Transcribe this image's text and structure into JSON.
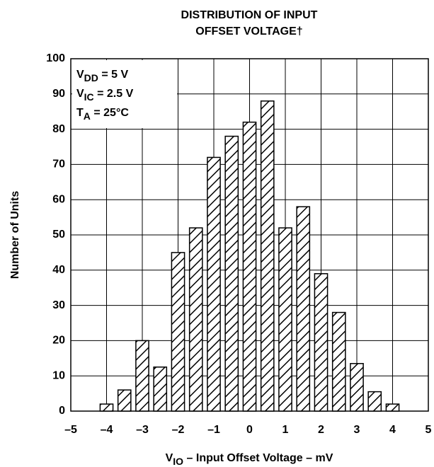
{
  "chart_data": {
    "type": "bar",
    "title": [
      "DISTRIBUTION OF INPUT",
      "OFFSET VOLTAGE†"
    ],
    "annotations": [
      {
        "text": "V",
        "sub": "DD",
        "rest": " = 5 V"
      },
      {
        "text": "V",
        "sub": "IC",
        "rest": " = 2.5 V"
      },
      {
        "text": "T",
        "sub": "A",
        "rest": " = 25°C"
      }
    ],
    "xlabel": {
      "text": "V",
      "sub": "IO",
      "rest": " – Input Offset Voltage – mV"
    },
    "ylabel": "Number of Units",
    "x": [
      -4,
      -3.5,
      -3,
      -2.5,
      -2,
      -1.5,
      -1,
      -0.5,
      0,
      0.5,
      1,
      1.5,
      2,
      2.5,
      3,
      3.5,
      4
    ],
    "values": [
      2,
      6,
      20,
      12.5,
      45,
      52,
      72,
      78,
      82,
      88,
      52,
      58,
      39,
      28,
      13.5,
      5.5,
      2
    ],
    "color": "#000000",
    "xlim": [
      -5,
      5
    ],
    "xticks": [
      {
        "value": -5,
        "label": "–5"
      },
      {
        "value": -4,
        "label": "–4"
      },
      {
        "value": -3,
        "label": "–3"
      },
      {
        "value": -2,
        "label": "–2"
      },
      {
        "value": -1,
        "label": "–1"
      },
      0,
      1,
      2,
      3,
      4,
      5
    ],
    "ylim": [
      0,
      100
    ],
    "yticks": [
      0,
      10,
      20,
      30,
      40,
      50,
      60,
      70,
      80,
      90,
      100
    ],
    "grid": true
  }
}
